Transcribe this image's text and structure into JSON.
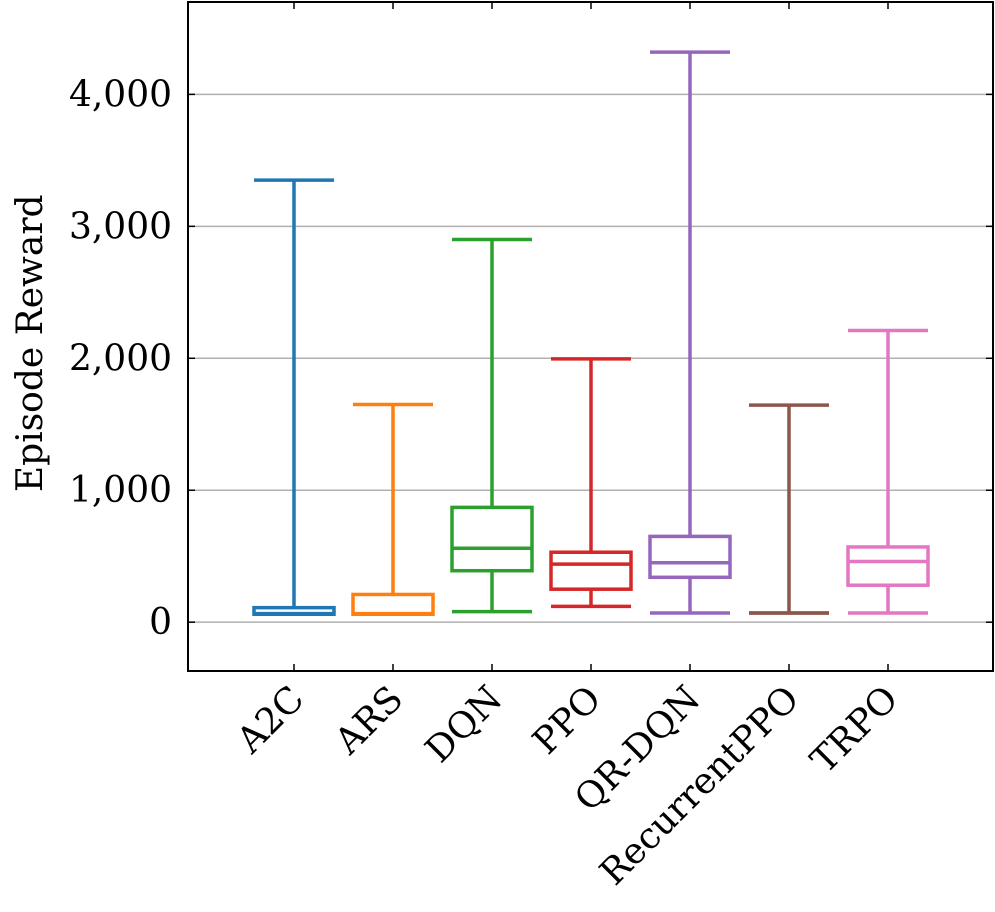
{
  "chart_data": {
    "type": "box",
    "ylabel": "Episode Reward",
    "xlabel": "",
    "title": "",
    "ylim": [
      -370,
      4700
    ],
    "yticks": [
      0,
      1000,
      2000,
      3000,
      4000
    ],
    "ytick_labels": [
      "0",
      "1,000",
      "2,000",
      "3,000",
      "4,000"
    ],
    "grid": "horizontal",
    "legend": "none",
    "categories": [
      "A2C",
      "ARS",
      "DQN",
      "PPO",
      "QR-DQN",
      "RecurrentPPO",
      "TRPO"
    ],
    "boxes": [
      {
        "category": "A2C",
        "whisker_low": 60,
        "q1": 60,
        "median": 65,
        "q3": 110,
        "whisker_high": 3350,
        "color": "#1f77b4"
      },
      {
        "category": "ARS",
        "whisker_low": 60,
        "q1": 60,
        "median": 65,
        "q3": 210,
        "whisker_high": 1650,
        "color": "#ff7f0e"
      },
      {
        "category": "DQN",
        "whisker_low": 80,
        "q1": 390,
        "median": 560,
        "q3": 870,
        "whisker_high": 2900,
        "color": "#2ca02c"
      },
      {
        "category": "PPO",
        "whisker_low": 120,
        "q1": 250,
        "median": 440,
        "q3": 530,
        "whisker_high": 1995,
        "color": "#d62728"
      },
      {
        "category": "QR-DQN",
        "whisker_low": 70,
        "q1": 340,
        "median": 450,
        "q3": 650,
        "whisker_high": 4320,
        "color": "#9467bd"
      },
      {
        "category": "RecurrentPPO",
        "whisker_low": 70,
        "q1": 70,
        "median": 70,
        "q3": 70,
        "whisker_high": 1645,
        "color": "#8c564b"
      },
      {
        "category": "TRPO",
        "whisker_low": 70,
        "q1": 280,
        "median": 460,
        "q3": 570,
        "whisker_high": 2210,
        "color": "#e377c2"
      }
    ]
  }
}
